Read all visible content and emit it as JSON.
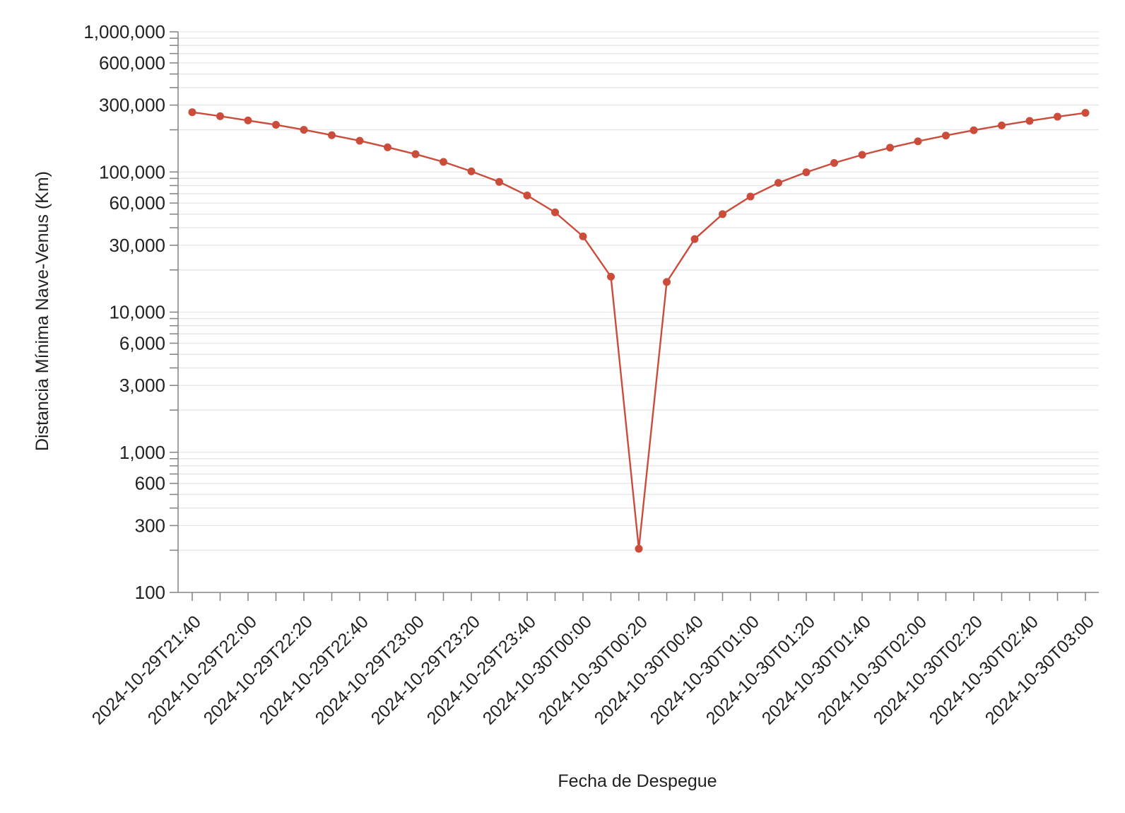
{
  "chart_data": {
    "type": "line",
    "xlabel": "Fecha de Despegue",
    "ylabel": "Distancia Mínima Nave-Venus (Km)",
    "y_scale": "log",
    "ylim": [
      100,
      1000000
    ],
    "grid": true,
    "y_ticks": [
      {
        "value": 100,
        "label": "100"
      },
      {
        "value": 300,
        "label": "300"
      },
      {
        "value": 600,
        "label": "600"
      },
      {
        "value": 1000,
        "label": "1,000"
      },
      {
        "value": 3000,
        "label": "3,000"
      },
      {
        "value": 6000,
        "label": "6,000"
      },
      {
        "value": 10000,
        "label": "10,000"
      },
      {
        "value": 30000,
        "label": "30,000"
      },
      {
        "value": 60000,
        "label": "60,000"
      },
      {
        "value": 100000,
        "label": "100,000"
      },
      {
        "value": 300000,
        "label": "300,000"
      },
      {
        "value": 600000,
        "label": "600,000"
      },
      {
        "value": 1000000,
        "label": "1,000,000"
      }
    ],
    "x_tick_labels": [
      "2024-10-29T21:40",
      "2024-10-29T22:00",
      "2024-10-29T22:20",
      "2024-10-29T22:40",
      "2024-10-29T23:00",
      "2024-10-29T23:20",
      "2024-10-29T23:40",
      "2024-10-30T00:00",
      "2024-10-30T00:20",
      "2024-10-30T00:40",
      "2024-10-30T01:00",
      "2024-10-30T01:20",
      "2024-10-30T01:40",
      "2024-10-30T02:00",
      "2024-10-30T02:20",
      "2024-10-30T02:40",
      "2024-10-30T03:00"
    ],
    "series": [
      {
        "color": "#cc4c3b",
        "x": [
          "2024-10-29T21:40",
          "2024-10-29T21:50",
          "2024-10-29T22:00",
          "2024-10-29T22:10",
          "2024-10-29T22:20",
          "2024-10-29T22:30",
          "2024-10-29T22:40",
          "2024-10-29T22:50",
          "2024-10-29T23:00",
          "2024-10-29T23:10",
          "2024-10-29T23:20",
          "2024-10-29T23:30",
          "2024-10-29T23:40",
          "2024-10-29T23:50",
          "2024-10-30T00:00",
          "2024-10-30T00:10",
          "2024-10-30T00:20",
          "2024-10-30T00:30",
          "2024-10-30T00:40",
          "2024-10-30T00:50",
          "2024-10-30T01:00",
          "2024-10-30T01:10",
          "2024-10-30T01:20",
          "2024-10-30T01:30",
          "2024-10-30T01:40",
          "2024-10-30T01:50",
          "2024-10-30T02:00",
          "2024-10-30T02:10",
          "2024-10-30T02:20",
          "2024-10-30T02:30",
          "2024-10-30T02:40",
          "2024-10-30T02:50",
          "2024-10-30T03:00"
        ],
        "y": [
          267000,
          250000,
          233000,
          217000,
          200000,
          183000,
          167000,
          150000,
          134000,
          118000,
          101000,
          85000,
          68000,
          51500,
          34700,
          17900,
          205,
          16400,
          33200,
          50000,
          66800,
          83600,
          99500,
          116000,
          132500,
          149000,
          165500,
          182000,
          198500,
          215000,
          231500,
          248000,
          264000
        ]
      }
    ]
  }
}
